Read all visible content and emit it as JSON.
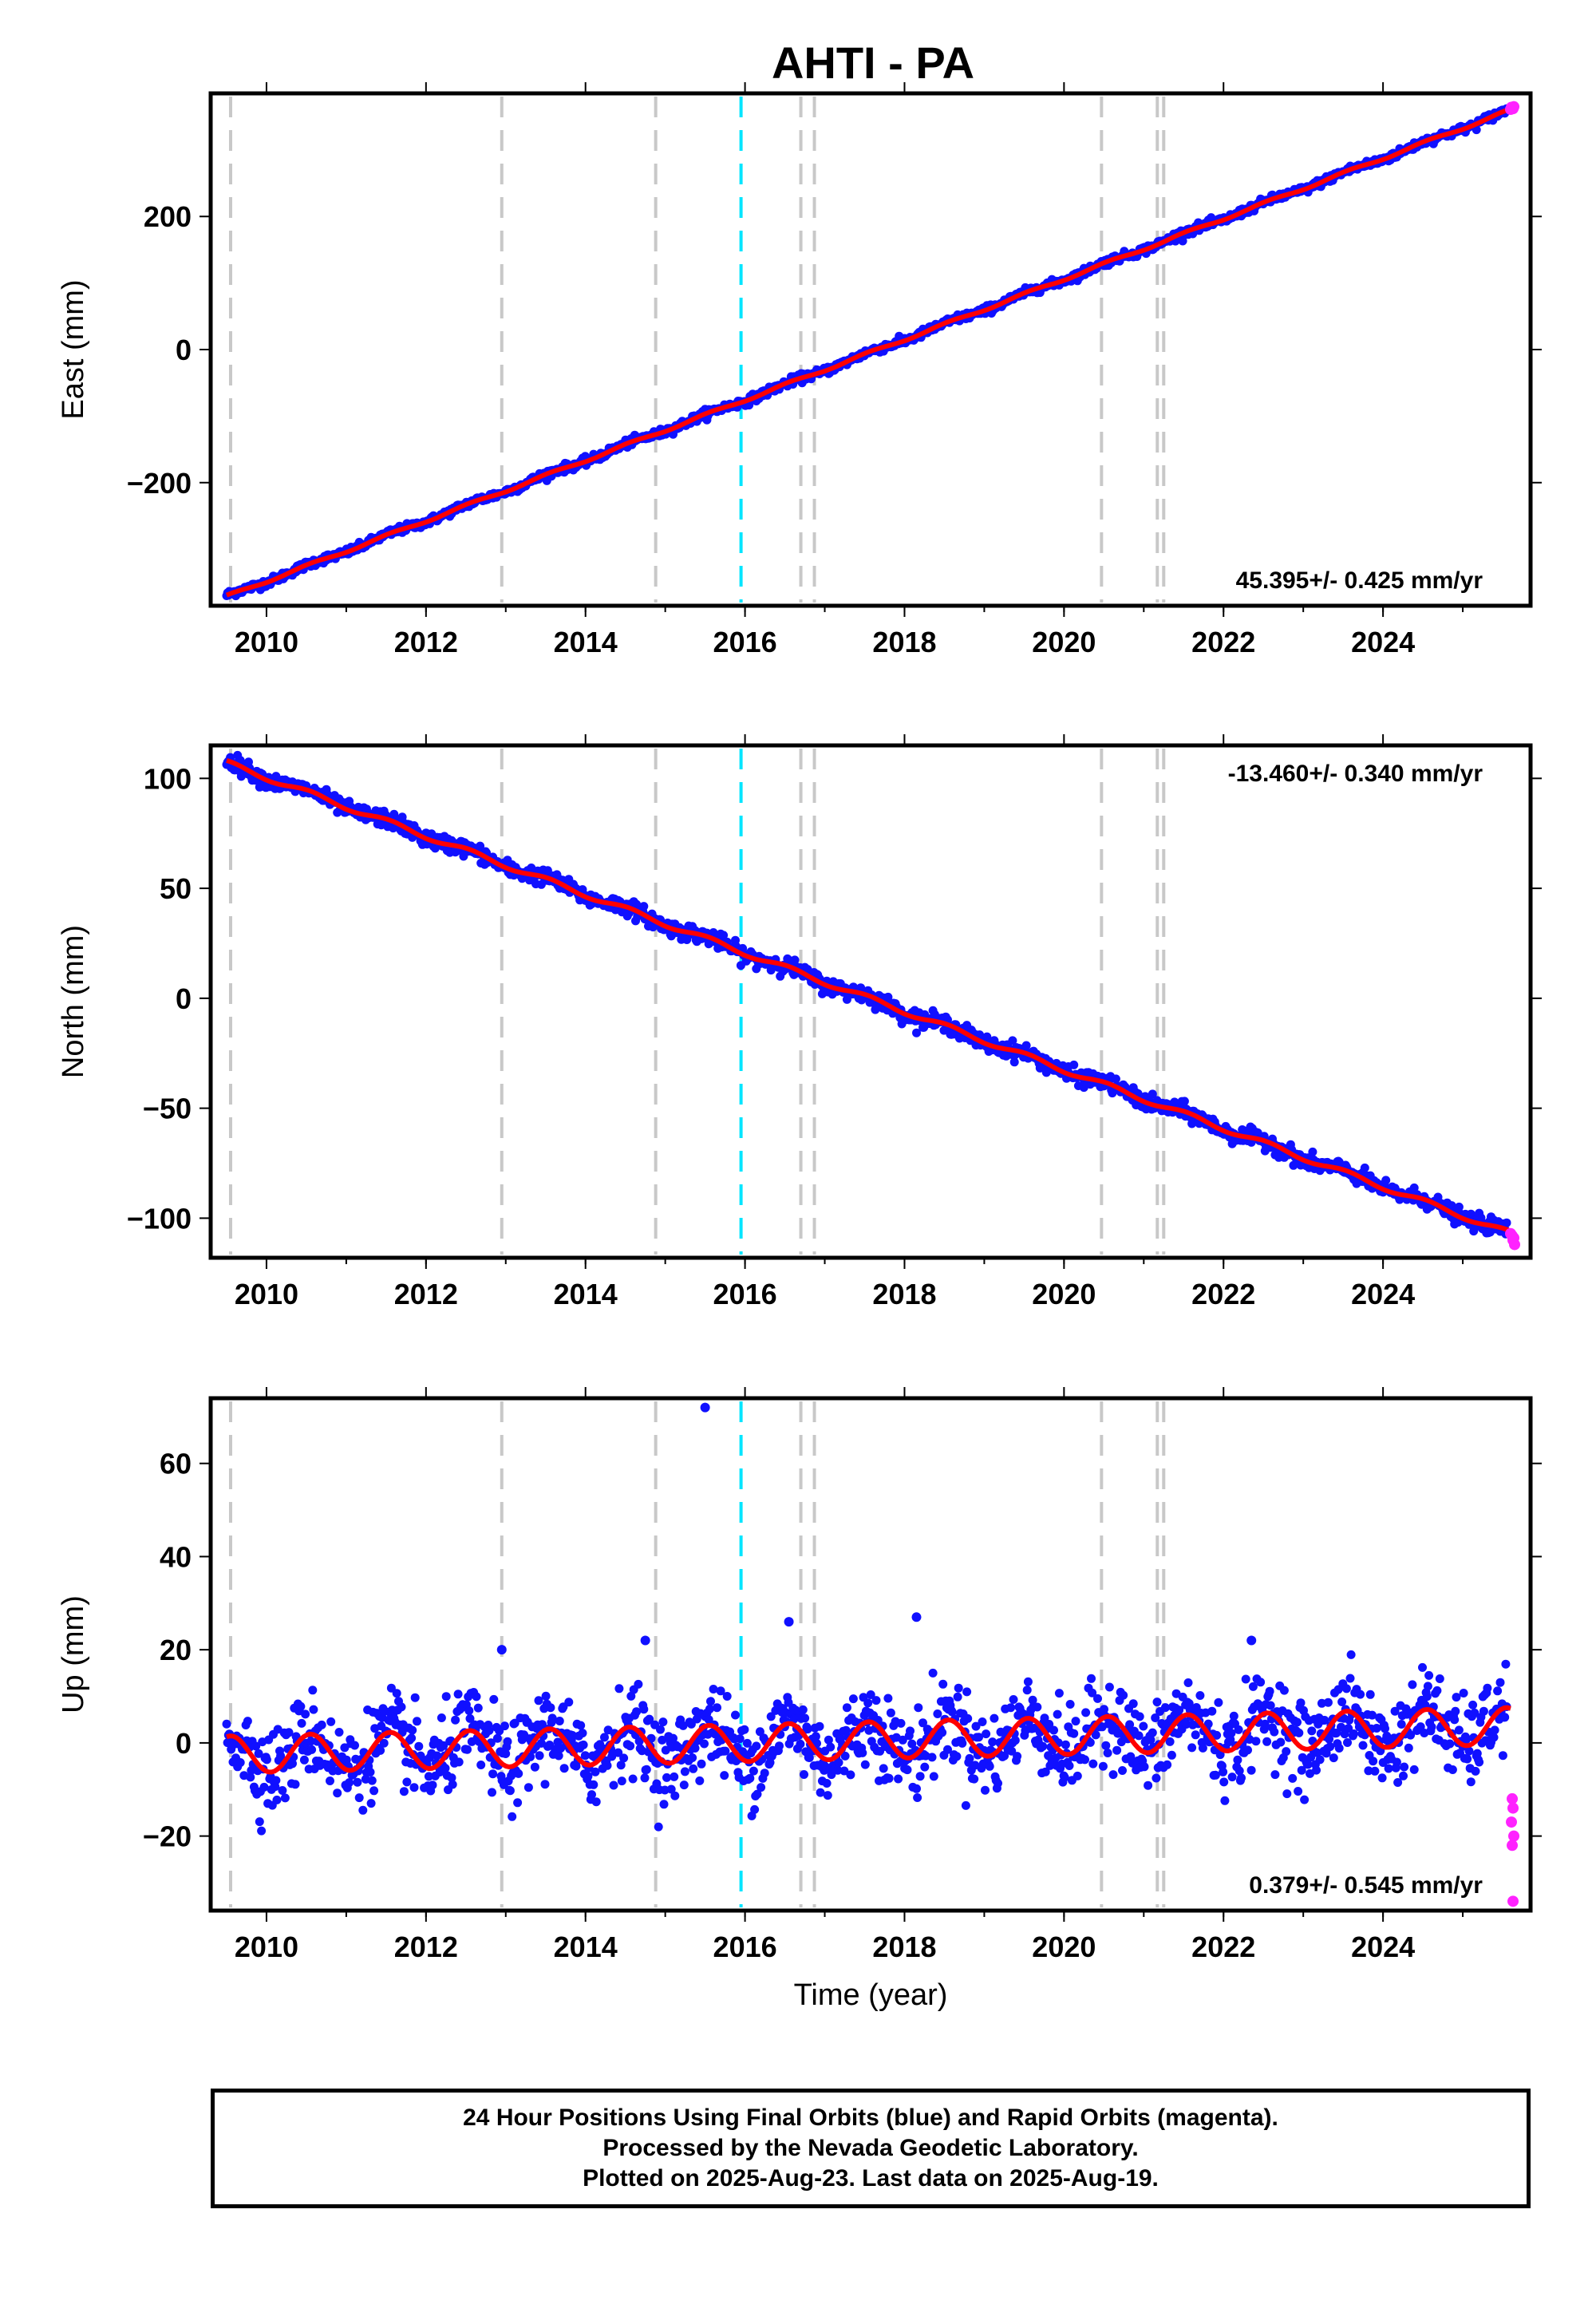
{
  "title": "AHTI - PA",
  "colors": {
    "final_orbits": "#1010ff",
    "rapid_orbits": "#ff22ff",
    "model_fit": "#ff0000",
    "event_line": "#c8c8c8",
    "event_line_special": "#00e5ff"
  },
  "chart_data": [
    {
      "type": "scatter",
      "component": "East",
      "ylabel": "East (mm)",
      "xlabel": "",
      "xlim": [
        2009.3,
        2025.85
      ],
      "ylim": [
        -385,
        385
      ],
      "xticks": [
        2010,
        2012,
        2014,
        2016,
        2018,
        2020,
        2022,
        2024
      ],
      "yticks": [
        -200,
        0,
        200
      ],
      "rate": "45.395+/- 0.425 mm/yr",
      "rate_position": "bottom-right",
      "series_model": {
        "start": [
          2009.5,
          -371
        ],
        "end": [
          2025.6,
          360
        ],
        "rate": 45.395,
        "seasonal_amplitude": 2.0
      },
      "final_range": [
        2009.5,
        2025.55
      ],
      "noise": 3.0,
      "rapid_points": [
        [
          2025.6,
          361
        ],
        [
          2025.62,
          363
        ],
        [
          2025.64,
          365
        ],
        [
          2025.63,
          362
        ],
        [
          2025.61,
          364
        ]
      ]
    },
    {
      "type": "scatter",
      "component": "North",
      "ylabel": "North (mm)",
      "xlabel": "",
      "xlim": [
        2009.3,
        2025.85
      ],
      "ylim": [
        -118,
        115
      ],
      "xticks": [
        2010,
        2012,
        2014,
        2016,
        2018,
        2020,
        2022,
        2024
      ],
      "yticks": [
        -100,
        -50,
        0,
        50,
        100
      ],
      "rate": "-13.460+/- 0.340 mm/yr",
      "rate_position": "top-right",
      "series_model": {
        "start": [
          2009.5,
          107
        ],
        "end": [
          2025.6,
          -107
        ],
        "rate": -13.46,
        "seasonal_amplitude": 1.2
      },
      "final_range": [
        2009.5,
        2025.55
      ],
      "noise": 1.8,
      "rapid_points": [
        [
          2025.6,
          -107
        ],
        [
          2025.62,
          -108
        ],
        [
          2025.64,
          -109
        ],
        [
          2025.63,
          -110
        ],
        [
          2025.65,
          -112
        ]
      ]
    },
    {
      "type": "scatter",
      "component": "Up",
      "ylabel": "Up (mm)",
      "xlabel": "Time (year)",
      "xlim": [
        2009.3,
        2025.85
      ],
      "ylim": [
        -36,
        74
      ],
      "xticks": [
        2010,
        2012,
        2014,
        2016,
        2018,
        2020,
        2022,
        2024
      ],
      "yticks": [
        -20,
        0,
        20,
        40,
        60
      ],
      "rate": "0.379+/- 0.545 mm/yr",
      "rate_position": "bottom-right",
      "series_model": {
        "start": [
          2009.5,
          -2.5
        ],
        "end": [
          2025.6,
          3.6
        ],
        "rate": 0.379,
        "seasonal_amplitude": 4.0
      },
      "final_range": [
        2009.5,
        2025.55
      ],
      "noise": 4.5,
      "outliers": [
        [
          2015.5,
          72
        ],
        [
          2016.55,
          26
        ],
        [
          2018.15,
          27
        ],
        [
          2014.75,
          22
        ],
        [
          2022.35,
          22
        ],
        [
          2012.95,
          20
        ]
      ],
      "rapid_points": [
        [
          2025.62,
          -12
        ],
        [
          2025.63,
          -14
        ],
        [
          2025.61,
          -17
        ],
        [
          2025.64,
          -20
        ],
        [
          2025.62,
          -22
        ],
        [
          2025.63,
          -34
        ]
      ]
    }
  ],
  "event_lines": [
    {
      "year": 2009.55,
      "kind": "equipment"
    },
    {
      "year": 2012.95,
      "kind": "equipment"
    },
    {
      "year": 2014.88,
      "kind": "equipment"
    },
    {
      "year": 2015.95,
      "kind": "special"
    },
    {
      "year": 2016.7,
      "kind": "equipment"
    },
    {
      "year": 2016.87,
      "kind": "equipment"
    },
    {
      "year": 2020.47,
      "kind": "equipment"
    },
    {
      "year": 2021.17,
      "kind": "equipment"
    },
    {
      "year": 2021.25,
      "kind": "equipment"
    }
  ],
  "footer": {
    "line1": "24 Hour Positions Using Final Orbits (blue) and Rapid Orbits (magenta).",
    "line2": "Processed by the Nevada Geodetic Laboratory.",
    "line3": "Plotted on 2025-Aug-23. Last data on 2025-Aug-19."
  }
}
